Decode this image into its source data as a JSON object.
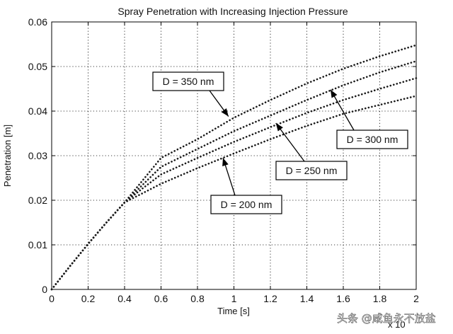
{
  "chart_data": {
    "type": "line",
    "title": "Spray Penetration with Increasing Injection Pressure",
    "xlabel": "Time [s]",
    "ylabel": "Penetration [m]",
    "x_exponent_label": "x 10",
    "xlim": [
      0,
      2
    ],
    "ylim": [
      0,
      0.06
    ],
    "xticks": [
      "0",
      "0.2",
      "0.4",
      "0.6",
      "0.8",
      "1",
      "1.2",
      "1.4",
      "1.6",
      "1.8",
      "2"
    ],
    "yticks": [
      "0",
      "0.01",
      "0.02",
      "0.03",
      "0.04",
      "0.05",
      "0.06"
    ],
    "grid": true,
    "series": [
      {
        "name": "D = 350 nm",
        "x": [
          0,
          0.1,
          0.2,
          0.3,
          0.4,
          0.5,
          0.6,
          0.8,
          1.0,
          1.2,
          1.4,
          1.6,
          1.8,
          2.0
        ],
        "y": [
          0,
          0.0052,
          0.0102,
          0.015,
          0.0195,
          0.0245,
          0.0295,
          0.0337,
          0.0385,
          0.0425,
          0.0462,
          0.0495,
          0.0523,
          0.0548
        ],
        "annotation_target": [
          0.97,
          0.0388
        ]
      },
      {
        "name": "D = 300 nm",
        "x": [
          0,
          0.1,
          0.2,
          0.3,
          0.4,
          0.5,
          0.6,
          0.8,
          1.0,
          1.2,
          1.4,
          1.6,
          1.8,
          2.0
        ],
        "y": [
          0,
          0.0052,
          0.0102,
          0.015,
          0.0195,
          0.0235,
          0.0275,
          0.0315,
          0.0355,
          0.039,
          0.0425,
          0.0458,
          0.0487,
          0.0512
        ],
        "annotation_target": [
          1.53,
          0.0448
        ]
      },
      {
        "name": "D = 250 nm",
        "x": [
          0,
          0.1,
          0.2,
          0.3,
          0.4,
          0.5,
          0.6,
          0.8,
          1.0,
          1.2,
          1.4,
          1.6,
          1.8,
          2.0
        ],
        "y": [
          0,
          0.0052,
          0.0102,
          0.015,
          0.0195,
          0.0227,
          0.0258,
          0.0295,
          0.0331,
          0.0364,
          0.0396,
          0.0425,
          0.045,
          0.0474
        ],
        "annotation_target": [
          1.23,
          0.0373
        ]
      },
      {
        "name": "D = 200 nm",
        "x": [
          0,
          0.1,
          0.2,
          0.3,
          0.4,
          0.5,
          0.6,
          0.8,
          1.0,
          1.2,
          1.4,
          1.6,
          1.8,
          2.0
        ],
        "y": [
          0,
          0.0052,
          0.0102,
          0.015,
          0.0195,
          0.0216,
          0.0237,
          0.0272,
          0.0305,
          0.0337,
          0.0367,
          0.0394,
          0.0414,
          0.0434
        ],
        "annotation_target": [
          0.94,
          0.0295
        ]
      }
    ]
  },
  "watermark": "头条 @咸鱼永不放盐"
}
